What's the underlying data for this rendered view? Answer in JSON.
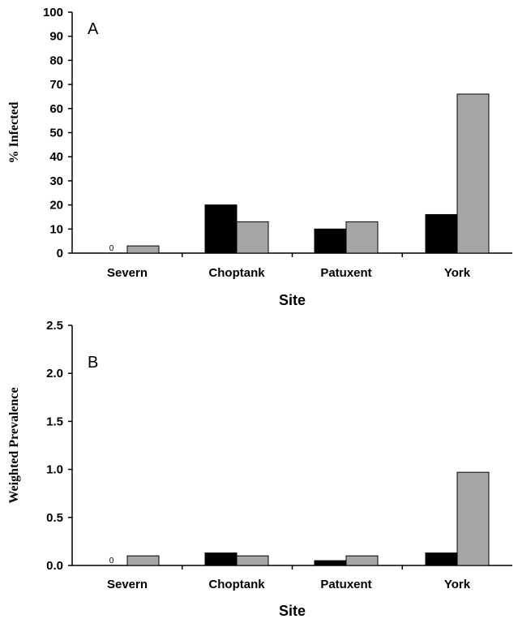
{
  "chart_data": [
    {
      "type": "bar",
      "panel_label": "A",
      "xlabel": "Site",
      "ylabel": "% Infected",
      "ylim": [
        0,
        100
      ],
      "yticks": [
        "0",
        "10",
        "20",
        "30",
        "40",
        "50",
        "60",
        "70",
        "80",
        "90",
        "100"
      ],
      "categories": [
        "Severn",
        "Choptank",
        "Patuxent",
        "York"
      ],
      "series": [
        {
          "color": "#000000",
          "values": [
            0,
            20,
            10,
            16
          ]
        },
        {
          "color": "#a6a6a6",
          "values": [
            3,
            13,
            13,
            66
          ]
        }
      ],
      "annotations": [
        {
          "category": "Severn",
          "series": 0,
          "text": "0"
        }
      ],
      "grid": false,
      "legend": false
    },
    {
      "type": "bar",
      "panel_label": "B",
      "xlabel": "Site",
      "ylabel": "Weighted Prevalence",
      "ylim": [
        0,
        2.5
      ],
      "yticks": [
        "0.0",
        "0.5",
        "1.0",
        "1.5",
        "2.0",
        "2.5"
      ],
      "categories": [
        "Severn",
        "Choptank",
        "Patuxent",
        "York"
      ],
      "series": [
        {
          "color": "#000000",
          "values": [
            0,
            0.13,
            0.05,
            0.13
          ]
        },
        {
          "color": "#a6a6a6",
          "values": [
            0.1,
            0.1,
            0.1,
            0.97
          ]
        }
      ],
      "annotations": [
        {
          "category": "Severn",
          "series": 0,
          "text": "0"
        }
      ],
      "grid": false,
      "legend": false
    }
  ]
}
